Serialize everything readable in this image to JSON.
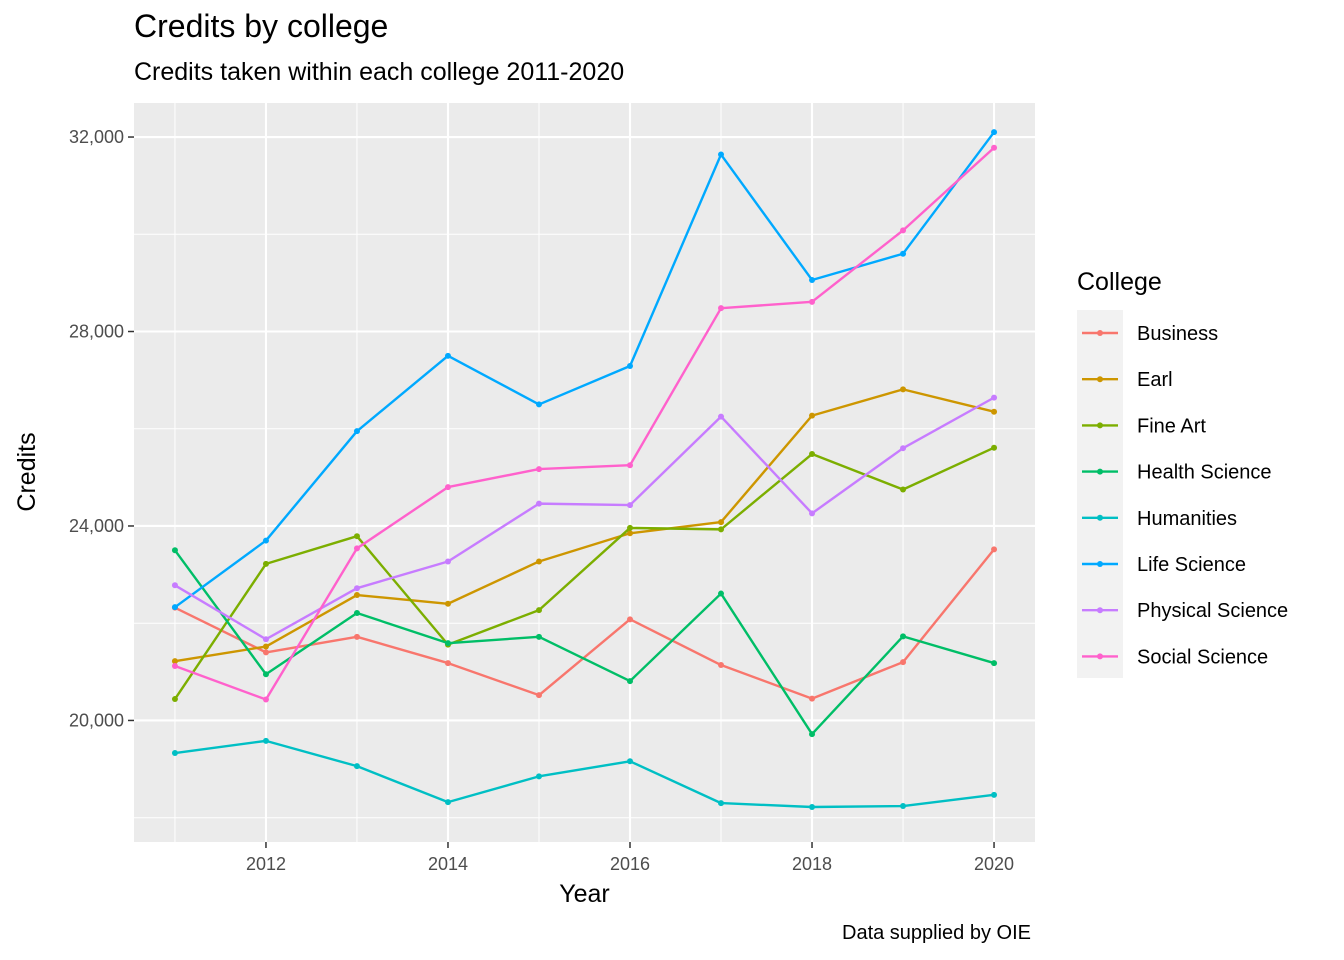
{
  "chart_data": {
    "type": "line",
    "title": "Credits by college",
    "subtitle": "Credits taken within each college 2011-2020",
    "caption": "Data supplied by OIE",
    "xlabel": "Year",
    "ylabel": "Credits",
    "x": [
      2011,
      2012,
      2013,
      2014,
      2015,
      2016,
      2017,
      2018,
      2019,
      2020
    ],
    "xlim": [
      2010.55,
      2020.45
    ],
    "ylim": [
      17500,
      32700
    ],
    "x_ticks": [
      2012,
      2014,
      2016,
      2018,
      2020
    ],
    "x_tick_labels": [
      "2012",
      "2014",
      "2016",
      "2018",
      "2020"
    ],
    "y_ticks": [
      20000,
      24000,
      28000,
      32000
    ],
    "y_tick_labels": [
      "20,000",
      "24,000",
      "28,000",
      "32,000"
    ],
    "grid": true,
    "legend_title": "College",
    "legend_position": "right",
    "series": [
      {
        "name": "Business",
        "color": "#F8766D",
        "values": [
          22320,
          21400,
          21720,
          21180,
          20520,
          22080,
          21140,
          20450,
          21200,
          23520
        ]
      },
      {
        "name": "Earl",
        "color": "#CD9600",
        "values": [
          21220,
          21520,
          22580,
          22400,
          23270,
          23850,
          24080,
          26270,
          26810,
          26350
        ]
      },
      {
        "name": "Fine Art",
        "color": "#7CAE00",
        "values": [
          20440,
          23220,
          23790,
          21560,
          22270,
          23960,
          23930,
          25480,
          24750,
          25610
        ]
      },
      {
        "name": "Health Science",
        "color": "#00BE67",
        "values": [
          23500,
          20950,
          22210,
          21590,
          21720,
          20810,
          22610,
          19720,
          21730,
          21180
        ]
      },
      {
        "name": "Humanities",
        "color": "#00BFC4",
        "values": [
          19330,
          19580,
          19060,
          18320,
          18850,
          19160,
          18300,
          18220,
          18240,
          18470
        ]
      },
      {
        "name": "Life Science",
        "color": "#00A9FF",
        "values": [
          22330,
          23700,
          25950,
          27500,
          26500,
          27290,
          31640,
          29060,
          29600,
          32100
        ]
      },
      {
        "name": "Physical Science",
        "color": "#C77CFF",
        "values": [
          22780,
          21670,
          22720,
          23270,
          24460,
          24430,
          26250,
          24260,
          25600,
          26640
        ]
      },
      {
        "name": "Social Science",
        "color": "#FF61CC",
        "values": [
          21120,
          20430,
          23540,
          24800,
          25170,
          25250,
          28480,
          28610,
          30080,
          31780
        ]
      }
    ]
  }
}
